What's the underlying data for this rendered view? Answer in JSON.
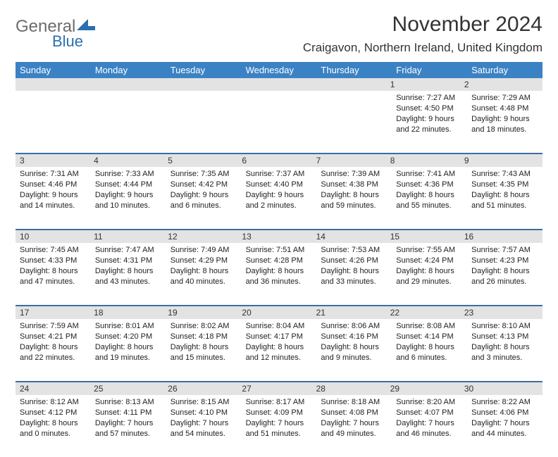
{
  "logo": {
    "text1": "General",
    "text2": "Blue"
  },
  "title": "November 2024",
  "location": "Craigavon, Northern Ireland, United Kingdom",
  "colors": {
    "header_bg": "#3b82c4",
    "header_text": "#ffffff",
    "daynum_bg": "#e3e3e3",
    "rule": "#3b6fa0",
    "body_text": "#222222",
    "title_text": "#333333",
    "logo_gray": "#6c6c6c",
    "logo_blue": "#2b6fb0"
  },
  "day_labels": [
    "Sunday",
    "Monday",
    "Tuesday",
    "Wednesday",
    "Thursday",
    "Friday",
    "Saturday"
  ],
  "weeks": [
    {
      "nums": [
        "",
        "",
        "",
        "",
        "",
        "1",
        "2"
      ],
      "cells": [
        null,
        null,
        null,
        null,
        null,
        {
          "sunrise": "Sunrise: 7:27 AM",
          "sunset": "Sunset: 4:50 PM",
          "day1": "Daylight: 9 hours",
          "day2": "and 22 minutes."
        },
        {
          "sunrise": "Sunrise: 7:29 AM",
          "sunset": "Sunset: 4:48 PM",
          "day1": "Daylight: 9 hours",
          "day2": "and 18 minutes."
        }
      ]
    },
    {
      "nums": [
        "3",
        "4",
        "5",
        "6",
        "7",
        "8",
        "9"
      ],
      "cells": [
        {
          "sunrise": "Sunrise: 7:31 AM",
          "sunset": "Sunset: 4:46 PM",
          "day1": "Daylight: 9 hours",
          "day2": "and 14 minutes."
        },
        {
          "sunrise": "Sunrise: 7:33 AM",
          "sunset": "Sunset: 4:44 PM",
          "day1": "Daylight: 9 hours",
          "day2": "and 10 minutes."
        },
        {
          "sunrise": "Sunrise: 7:35 AM",
          "sunset": "Sunset: 4:42 PM",
          "day1": "Daylight: 9 hours",
          "day2": "and 6 minutes."
        },
        {
          "sunrise": "Sunrise: 7:37 AM",
          "sunset": "Sunset: 4:40 PM",
          "day1": "Daylight: 9 hours",
          "day2": "and 2 minutes."
        },
        {
          "sunrise": "Sunrise: 7:39 AM",
          "sunset": "Sunset: 4:38 PM",
          "day1": "Daylight: 8 hours",
          "day2": "and 59 minutes."
        },
        {
          "sunrise": "Sunrise: 7:41 AM",
          "sunset": "Sunset: 4:36 PM",
          "day1": "Daylight: 8 hours",
          "day2": "and 55 minutes."
        },
        {
          "sunrise": "Sunrise: 7:43 AM",
          "sunset": "Sunset: 4:35 PM",
          "day1": "Daylight: 8 hours",
          "day2": "and 51 minutes."
        }
      ]
    },
    {
      "nums": [
        "10",
        "11",
        "12",
        "13",
        "14",
        "15",
        "16"
      ],
      "cells": [
        {
          "sunrise": "Sunrise: 7:45 AM",
          "sunset": "Sunset: 4:33 PM",
          "day1": "Daylight: 8 hours",
          "day2": "and 47 minutes."
        },
        {
          "sunrise": "Sunrise: 7:47 AM",
          "sunset": "Sunset: 4:31 PM",
          "day1": "Daylight: 8 hours",
          "day2": "and 43 minutes."
        },
        {
          "sunrise": "Sunrise: 7:49 AM",
          "sunset": "Sunset: 4:29 PM",
          "day1": "Daylight: 8 hours",
          "day2": "and 40 minutes."
        },
        {
          "sunrise": "Sunrise: 7:51 AM",
          "sunset": "Sunset: 4:28 PM",
          "day1": "Daylight: 8 hours",
          "day2": "and 36 minutes."
        },
        {
          "sunrise": "Sunrise: 7:53 AM",
          "sunset": "Sunset: 4:26 PM",
          "day1": "Daylight: 8 hours",
          "day2": "and 33 minutes."
        },
        {
          "sunrise": "Sunrise: 7:55 AM",
          "sunset": "Sunset: 4:24 PM",
          "day1": "Daylight: 8 hours",
          "day2": "and 29 minutes."
        },
        {
          "sunrise": "Sunrise: 7:57 AM",
          "sunset": "Sunset: 4:23 PM",
          "day1": "Daylight: 8 hours",
          "day2": "and 26 minutes."
        }
      ]
    },
    {
      "nums": [
        "17",
        "18",
        "19",
        "20",
        "21",
        "22",
        "23"
      ],
      "cells": [
        {
          "sunrise": "Sunrise: 7:59 AM",
          "sunset": "Sunset: 4:21 PM",
          "day1": "Daylight: 8 hours",
          "day2": "and 22 minutes."
        },
        {
          "sunrise": "Sunrise: 8:01 AM",
          "sunset": "Sunset: 4:20 PM",
          "day1": "Daylight: 8 hours",
          "day2": "and 19 minutes."
        },
        {
          "sunrise": "Sunrise: 8:02 AM",
          "sunset": "Sunset: 4:18 PM",
          "day1": "Daylight: 8 hours",
          "day2": "and 15 minutes."
        },
        {
          "sunrise": "Sunrise: 8:04 AM",
          "sunset": "Sunset: 4:17 PM",
          "day1": "Daylight: 8 hours",
          "day2": "and 12 minutes."
        },
        {
          "sunrise": "Sunrise: 8:06 AM",
          "sunset": "Sunset: 4:16 PM",
          "day1": "Daylight: 8 hours",
          "day2": "and 9 minutes."
        },
        {
          "sunrise": "Sunrise: 8:08 AM",
          "sunset": "Sunset: 4:14 PM",
          "day1": "Daylight: 8 hours",
          "day2": "and 6 minutes."
        },
        {
          "sunrise": "Sunrise: 8:10 AM",
          "sunset": "Sunset: 4:13 PM",
          "day1": "Daylight: 8 hours",
          "day2": "and 3 minutes."
        }
      ]
    },
    {
      "nums": [
        "24",
        "25",
        "26",
        "27",
        "28",
        "29",
        "30"
      ],
      "cells": [
        {
          "sunrise": "Sunrise: 8:12 AM",
          "sunset": "Sunset: 4:12 PM",
          "day1": "Daylight: 8 hours",
          "day2": "and 0 minutes."
        },
        {
          "sunrise": "Sunrise: 8:13 AM",
          "sunset": "Sunset: 4:11 PM",
          "day1": "Daylight: 7 hours",
          "day2": "and 57 minutes."
        },
        {
          "sunrise": "Sunrise: 8:15 AM",
          "sunset": "Sunset: 4:10 PM",
          "day1": "Daylight: 7 hours",
          "day2": "and 54 minutes."
        },
        {
          "sunrise": "Sunrise: 8:17 AM",
          "sunset": "Sunset: 4:09 PM",
          "day1": "Daylight: 7 hours",
          "day2": "and 51 minutes."
        },
        {
          "sunrise": "Sunrise: 8:18 AM",
          "sunset": "Sunset: 4:08 PM",
          "day1": "Daylight: 7 hours",
          "day2": "and 49 minutes."
        },
        {
          "sunrise": "Sunrise: 8:20 AM",
          "sunset": "Sunset: 4:07 PM",
          "day1": "Daylight: 7 hours",
          "day2": "and 46 minutes."
        },
        {
          "sunrise": "Sunrise: 8:22 AM",
          "sunset": "Sunset: 4:06 PM",
          "day1": "Daylight: 7 hours",
          "day2": "and 44 minutes."
        }
      ]
    }
  ]
}
